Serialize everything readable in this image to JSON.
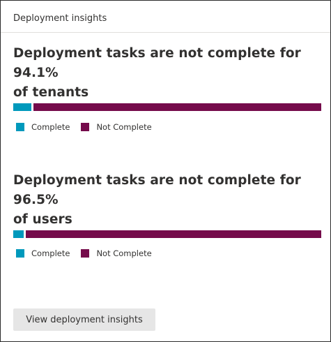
{
  "card": {
    "title": "Deployment insights"
  },
  "sections": [
    {
      "headline_line1": "Deployment tasks are not complete for 94.1%",
      "headline_line2": "of tenants",
      "complete_fraction": 0.059,
      "incomplete_fraction": 0.941,
      "legend": {
        "complete": "Complete",
        "not_complete": "Not Complete"
      }
    },
    {
      "headline_line1": "Deployment tasks are not complete for 96.5%",
      "headline_line2": "of users",
      "complete_fraction": 0.035,
      "incomplete_fraction": 0.965,
      "legend": {
        "complete": "Complete",
        "not_complete": "Not Complete"
      }
    }
  ],
  "colors": {
    "complete": "#0099bc",
    "not_complete": "#750b4b"
  },
  "button": {
    "label": "View deployment insights"
  }
}
